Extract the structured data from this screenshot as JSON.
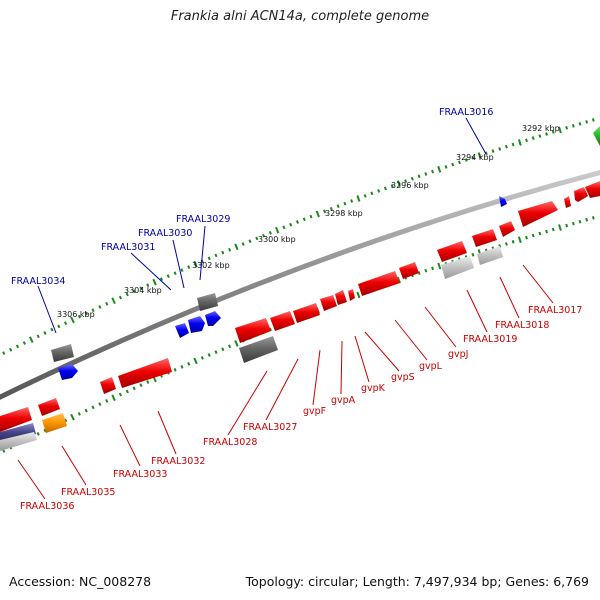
{
  "title": "Frankia alni ACN14a, complete genome",
  "footer": {
    "accession": "Accession: NC_008278",
    "summary": "Topology: circular; Length: 7,497,934 bp; Genes: 6,769"
  },
  "colors": {
    "forward_gene": "#ee0000",
    "reverse_gene": "#ee0000",
    "blue_gene": "#0000dd",
    "gray_gene": "#666666",
    "light_gray_gene": "#bbbbbb",
    "orange_gene": "#ff9900",
    "green_gene": "#22bb22",
    "purple_gene": "#444488",
    "backbone": "#888888",
    "ticks": "#1a8a1a",
    "label_red": "#cc0000",
    "label_blue": "#0000aa"
  },
  "scale_ticks": [
    {
      "label": "3292 kbp"
    },
    {
      "label": "3294 kbp"
    },
    {
      "label": "3296 kbp"
    },
    {
      "label": "3298 kbp"
    },
    {
      "label": "3300 kbp"
    },
    {
      "label": "3302 kbp"
    },
    {
      "label": "3304 kbp"
    },
    {
      "label": "3306 kbp"
    }
  ],
  "gene_labels_top": [
    {
      "name": "FRAAL3016"
    },
    {
      "name": "FRAAL3029"
    },
    {
      "name": "FRAAL3030"
    },
    {
      "name": "FRAAL3031"
    },
    {
      "name": "FRAAL3034"
    }
  ],
  "gene_labels_bottom": [
    {
      "name": "FRAAL3017"
    },
    {
      "name": "FRAAL3018"
    },
    {
      "name": "FRAAL3019"
    },
    {
      "name": "gvpJ"
    },
    {
      "name": "gvpL"
    },
    {
      "name": "gvpS"
    },
    {
      "name": "gvpK"
    },
    {
      "name": "gvpA"
    },
    {
      "name": "gvpF"
    },
    {
      "name": "FRAAL3027"
    },
    {
      "name": "FRAAL3028"
    },
    {
      "name": "FRAAL3032"
    },
    {
      "name": "FRAAL3033"
    },
    {
      "name": "FRAAL3035"
    },
    {
      "name": "FRAAL3036"
    }
  ]
}
